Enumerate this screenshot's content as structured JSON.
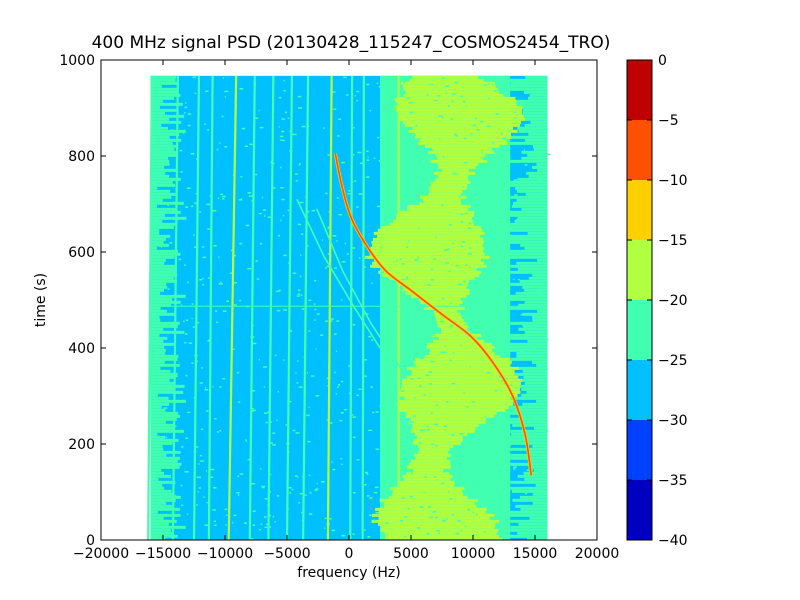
{
  "chart_data": {
    "type": "heatmap",
    "title": "400 MHz signal PSD (20130428_115247_COSMOS2454_TRO)",
    "xlabel": "frequency (Hz)",
    "ylabel": "time (s)",
    "xlim": [
      -20000,
      20000
    ],
    "ylim": [
      0,
      1000
    ],
    "x_ticks": [
      "−20000",
      "−15000",
      "−10000",
      "−5000",
      "0",
      "5000",
      "10000",
      "15000",
      "20000"
    ],
    "x_tick_values": [
      -20000,
      -15000,
      -10000,
      -5000,
      0,
      5000,
      10000,
      15000,
      20000
    ],
    "y_ticks": [
      "0",
      "200",
      "400",
      "600",
      "800",
      "1000"
    ],
    "y_tick_values": [
      0,
      200,
      400,
      600,
      800,
      1000
    ],
    "data_extent": {
      "freq": [
        -16000,
        16000
      ],
      "time": [
        0,
        967
      ]
    },
    "colorbar": {
      "levels": [
        -40,
        -35,
        -30,
        -25,
        -20,
        -15,
        -10,
        -5,
        0
      ],
      "tick_labels": [
        "−40",
        "−35",
        "−30",
        "−25",
        "−20",
        "−15",
        "−10",
        "−5",
        "0"
      ],
      "colors": [
        "#0000c0",
        "#0040ff",
        "#00c0ff",
        "#40ffb0",
        "#b0ff40",
        "#ffd000",
        "#ff5000",
        "#c00000"
      ]
    },
    "background_level_color": "#00c0ff",
    "noise_level_color": "#40ffb0",
    "band_level_color": "#b0ff40",
    "signal_level_color": "#ff5000",
    "noise_floor_band": {
      "freq": [
        2500,
        13000
      ]
    },
    "vertical_lines": [
      {
        "freq_top": -15900,
        "freq_bottom": -16200,
        "level": -20
      },
      {
        "freq_top": -13800,
        "freq_bottom": -14200,
        "level": -20
      },
      {
        "freq_top": -12100,
        "freq_bottom": -12500,
        "level": -20
      },
      {
        "freq_top": -11000,
        "freq_bottom": -11300,
        "level": -20
      },
      {
        "freq_top": -9100,
        "freq_bottom": -9700,
        "level": -15
      },
      {
        "freq_top": -7600,
        "freq_bottom": -8000,
        "level": -20
      },
      {
        "freq_top": -6100,
        "freq_bottom": -6500,
        "level": -20
      },
      {
        "freq_top": -4600,
        "freq_bottom": -5000,
        "level": -20
      },
      {
        "freq_top": -3300,
        "freq_bottom": -3700,
        "level": -20
      },
      {
        "freq_top": -1400,
        "freq_bottom": -1700,
        "level": -15
      },
      {
        "freq_top": 250,
        "freq_bottom": 100,
        "level": -20
      },
      {
        "freq_top": 1200,
        "freq_bottom": 1100,
        "level": -20
      },
      {
        "freq_top": 4000,
        "freq_bottom": 4000,
        "level": -15
      }
    ],
    "signal_trace": [
      {
        "freq": -1100,
        "time": 805
      },
      {
        "freq": -600,
        "time": 740
      },
      {
        "freq": 200,
        "time": 670
      },
      {
        "freq": 1500,
        "time": 610
      },
      {
        "freq": 3000,
        "time": 560
      },
      {
        "freq": 5000,
        "time": 520
      },
      {
        "freq": 7500,
        "time": 470
      },
      {
        "freq": 9800,
        "time": 425
      },
      {
        "freq": 11600,
        "time": 370
      },
      {
        "freq": 13200,
        "time": 300
      },
      {
        "freq": 14200,
        "time": 220
      },
      {
        "freq": 14700,
        "time": 135
      }
    ],
    "faint_traces": [
      [
        {
          "freq": -4200,
          "time": 710
        },
        {
          "freq": -2000,
          "time": 590
        },
        {
          "freq": 300,
          "time": 490
        },
        {
          "freq": 2500,
          "time": 400
        }
      ],
      [
        {
          "freq": -2600,
          "time": 690
        },
        {
          "freq": -500,
          "time": 560
        },
        {
          "freq": 1800,
          "time": 450
        },
        {
          "freq": 4500,
          "time": 345
        }
      ]
    ],
    "horizontal_artifact_time": 487,
    "grid": false
  }
}
